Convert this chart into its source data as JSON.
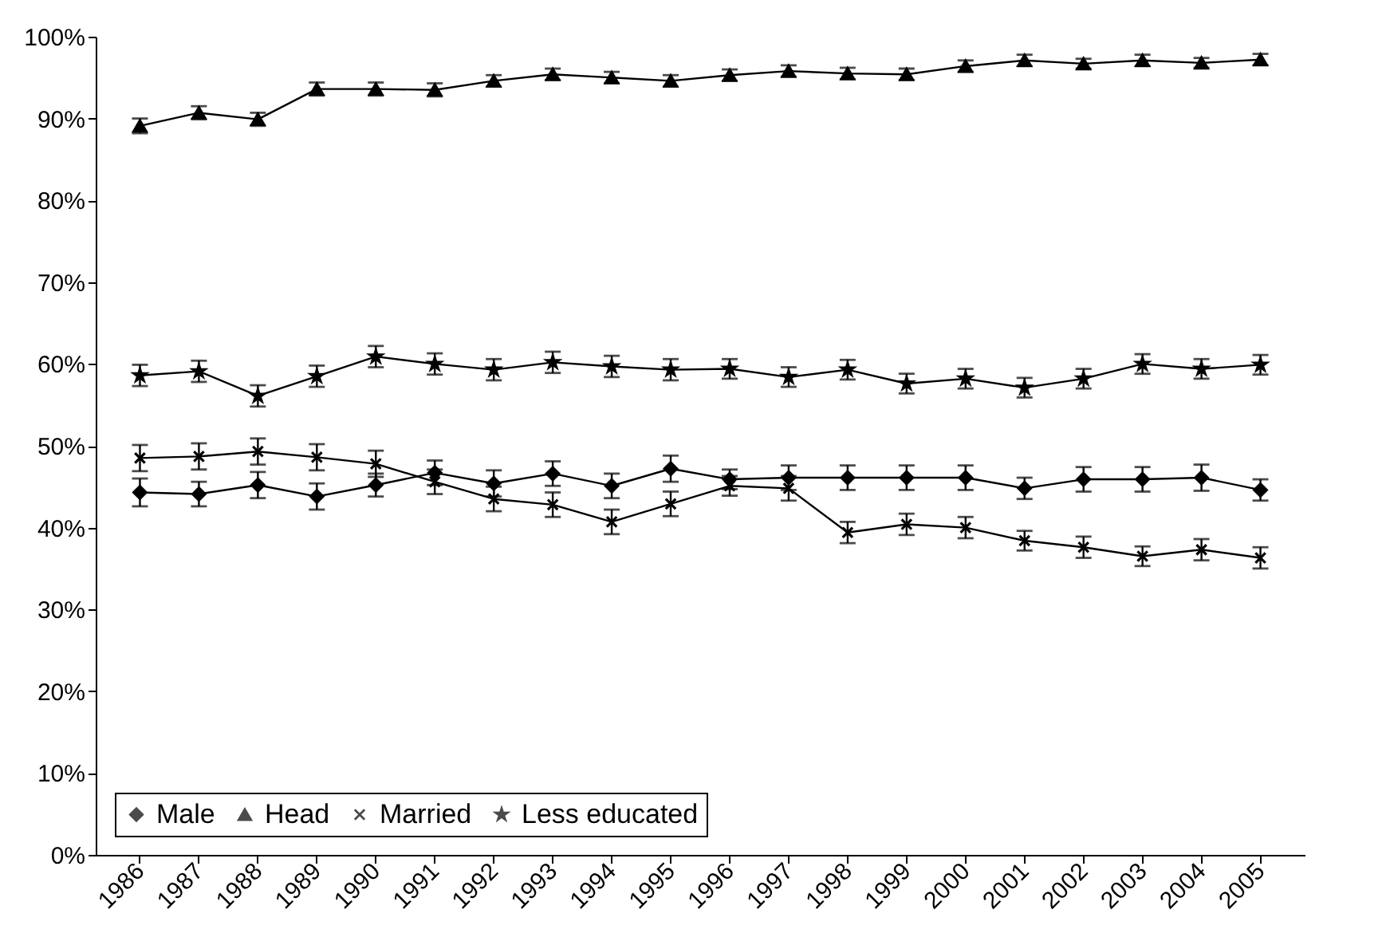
{
  "chart_data": {
    "type": "line",
    "categories": [
      "1986",
      "1987",
      "1988",
      "1989",
      "1990",
      "1991",
      "1992",
      "1993",
      "1994",
      "1995",
      "1996",
      "1997",
      "1998",
      "1999",
      "2000",
      "2001",
      "2002",
      "2003",
      "2004",
      "2005"
    ],
    "ylim": [
      0,
      100
    ],
    "yticks": [
      {
        "value": 0,
        "label": "0%"
      },
      {
        "value": 10,
        "label": "10%"
      },
      {
        "value": 20,
        "label": "20%"
      },
      {
        "value": 30,
        "label": "30%"
      },
      {
        "value": 40,
        "label": "40%"
      },
      {
        "value": 50,
        "label": "50%"
      },
      {
        "value": 60,
        "label": "60%"
      },
      {
        "value": 70,
        "label": "70%"
      },
      {
        "value": 80,
        "label": "80%"
      },
      {
        "value": 90,
        "label": "90%"
      },
      {
        "value": 100,
        "label": "100%"
      }
    ],
    "grid": false,
    "legend": "bottom left",
    "line_style": "solid",
    "series": [
      {
        "name": "Male",
        "color": "#000000",
        "marker": "diamond",
        "values": [
          44.3,
          44.1,
          45.2,
          43.8,
          45.2,
          46.7,
          45.4,
          46.6,
          45.1,
          47.2,
          45.9,
          46.1,
          46.1,
          46.1,
          46.1,
          44.8,
          45.9,
          45.9,
          46.1,
          44.6
        ],
        "errors": [
          1.7,
          1.5,
          1.6,
          1.6,
          1.4,
          1.5,
          1.6,
          1.5,
          1.5,
          1.6,
          1.2,
          1.5,
          1.5,
          1.5,
          1.5,
          1.3,
          1.5,
          1.5,
          1.6,
          1.3
        ]
      },
      {
        "name": "Head",
        "color": "#000000",
        "marker": "triangle",
        "values": [
          89.1,
          90.7,
          89.9,
          93.6,
          93.6,
          93.5,
          94.6,
          95.4,
          95.0,
          94.6,
          95.3,
          95.8,
          95.5,
          95.4,
          96.4,
          97.1,
          96.7,
          97.1,
          96.8,
          97.2
        ],
        "errors": [
          0.9,
          0.8,
          0.8,
          0.8,
          0.8,
          0.8,
          0.7,
          0.7,
          0.7,
          0.7,
          0.7,
          0.7,
          0.7,
          0.7,
          0.7,
          0.7,
          0.6,
          0.7,
          0.6,
          0.7
        ]
      },
      {
        "name": "Married",
        "color": "#000000",
        "marker": "cross",
        "values": [
          48.5,
          48.7,
          49.3,
          48.6,
          47.8,
          45.6,
          43.5,
          42.8,
          40.7,
          42.9,
          45.1,
          44.8,
          39.4,
          40.4,
          40.0,
          38.4,
          37.6,
          36.5,
          37.3,
          36.3
        ],
        "errors": [
          1.6,
          1.6,
          1.6,
          1.6,
          1.6,
          1.5,
          1.5,
          1.5,
          1.5,
          1.5,
          1.2,
          1.5,
          1.3,
          1.3,
          1.3,
          1.2,
          1.3,
          1.2,
          1.3,
          1.3
        ]
      },
      {
        "name": "Less educated",
        "color": "#000000",
        "marker": "star",
        "values": [
          58.6,
          59.1,
          56.1,
          58.5,
          60.9,
          60.0,
          59.3,
          60.2,
          59.7,
          59.3,
          59.4,
          58.4,
          59.3,
          57.6,
          58.2,
          57.1,
          58.2,
          60.0,
          59.4,
          59.9
        ],
        "errors": [
          1.3,
          1.3,
          1.3,
          1.3,
          1.3,
          1.3,
          1.3,
          1.3,
          1.3,
          1.3,
          1.2,
          1.2,
          1.2,
          1.2,
          1.2,
          1.2,
          1.2,
          1.2,
          1.2,
          1.2
        ]
      }
    ]
  }
}
